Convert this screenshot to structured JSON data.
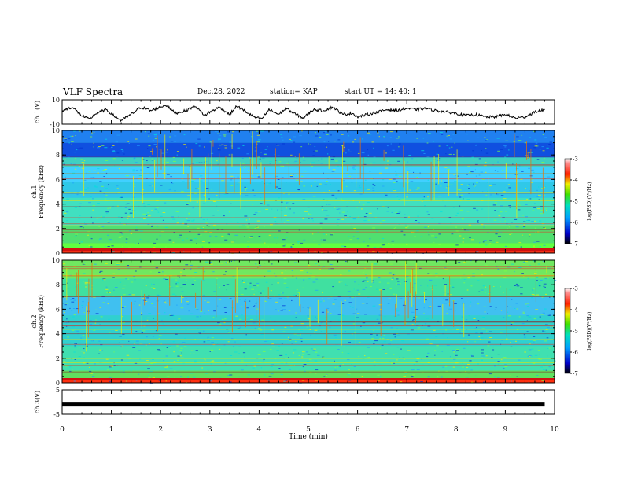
{
  "header": {
    "title": "VLF Spectra",
    "date": "Dec.28, 2022",
    "station": "station= KAP",
    "start": "start  UT =   14: 40: 1"
  },
  "chart_data": [
    {
      "type": "line",
      "name": "ch.1 waveform",
      "ylabel": "ch.1(V)",
      "ylim": [
        -10,
        10
      ],
      "ytick_labels": [
        "10",
        "-10"
      ],
      "xlim": [
        0,
        10
      ],
      "x": [
        0.0,
        0.2,
        0.4,
        0.55,
        0.7,
        0.9,
        1.05,
        1.2,
        1.4,
        1.6,
        1.8,
        2.0,
        2.1,
        2.3,
        2.5,
        2.7,
        2.9,
        3.0,
        3.2,
        3.4,
        3.55,
        3.7,
        3.9,
        4.05,
        4.2,
        4.4,
        4.55,
        4.7,
        4.9,
        5.1,
        5.3,
        5.5,
        5.7,
        5.9,
        6.0,
        6.2,
        6.4,
        6.6,
        6.8,
        7.0,
        7.2,
        7.4,
        7.6,
        7.8,
        8.0,
        8.2,
        8.4,
        8.6,
        8.8,
        9.0,
        9.2,
        9.4,
        9.6,
        9.8
      ],
      "y": [
        1,
        4,
        -3,
        -6,
        -1,
        2,
        -3,
        -7,
        -2,
        4,
        1,
        4,
        6,
        -1,
        1,
        5,
        -3,
        0,
        4,
        -2,
        5,
        1,
        -4,
        -6,
        2,
        -2,
        3,
        -1,
        -5,
        2,
        1,
        4,
        -2,
        -1,
        -4,
        -2,
        0,
        2,
        1,
        3,
        2,
        3,
        1,
        0,
        -1,
        -3,
        -2,
        -4,
        -4,
        -2,
        -5,
        -4,
        0,
        2
      ]
    },
    {
      "type": "heatmap",
      "name": "ch.1 spectrogram",
      "ylabel": "ch.1\nFrequency (kHz)",
      "ylim": [
        0,
        10
      ],
      "ytick_labels": [
        "0",
        "2",
        "4",
        "6",
        "8",
        "10"
      ],
      "xlim": [
        0,
        10
      ],
      "colorbar": {
        "label": "log(PSD)(V²/Hz)",
        "range": [
          -7,
          -3
        ],
        "tick_labels": [
          "-3",
          "-4",
          "-5",
          "-6",
          "-7"
        ]
      }
    },
    {
      "type": "heatmap",
      "name": "ch.2 spectrogram",
      "ylabel": "ch.2\nFrequency (kHz)",
      "ylim": [
        0,
        10
      ],
      "ytick_labels": [
        "0",
        "2",
        "4",
        "6",
        "8",
        "10"
      ],
      "xlim": [
        0,
        10
      ],
      "colorbar": {
        "label": "log(PSD)(V²/Hz)",
        "range": [
          -7,
          -3
        ],
        "tick_labels": [
          "-3",
          "-4",
          "-5",
          "-6",
          "-7"
        ]
      }
    },
    {
      "type": "line",
      "name": "ch.3 waveform",
      "ylabel": "ch.3(V)",
      "ylim": [
        -5,
        5
      ],
      "ytick_labels": [
        "5",
        "-5"
      ],
      "xlim": [
        0,
        10
      ],
      "x": [
        0,
        9.8
      ],
      "y": [
        -1,
        -1
      ]
    }
  ],
  "xaxis": {
    "label": "Time  (min)",
    "tick_labels": [
      "0",
      "1",
      "2",
      "3",
      "4",
      "5",
      "6",
      "7",
      "8",
      "9",
      "10"
    ]
  }
}
